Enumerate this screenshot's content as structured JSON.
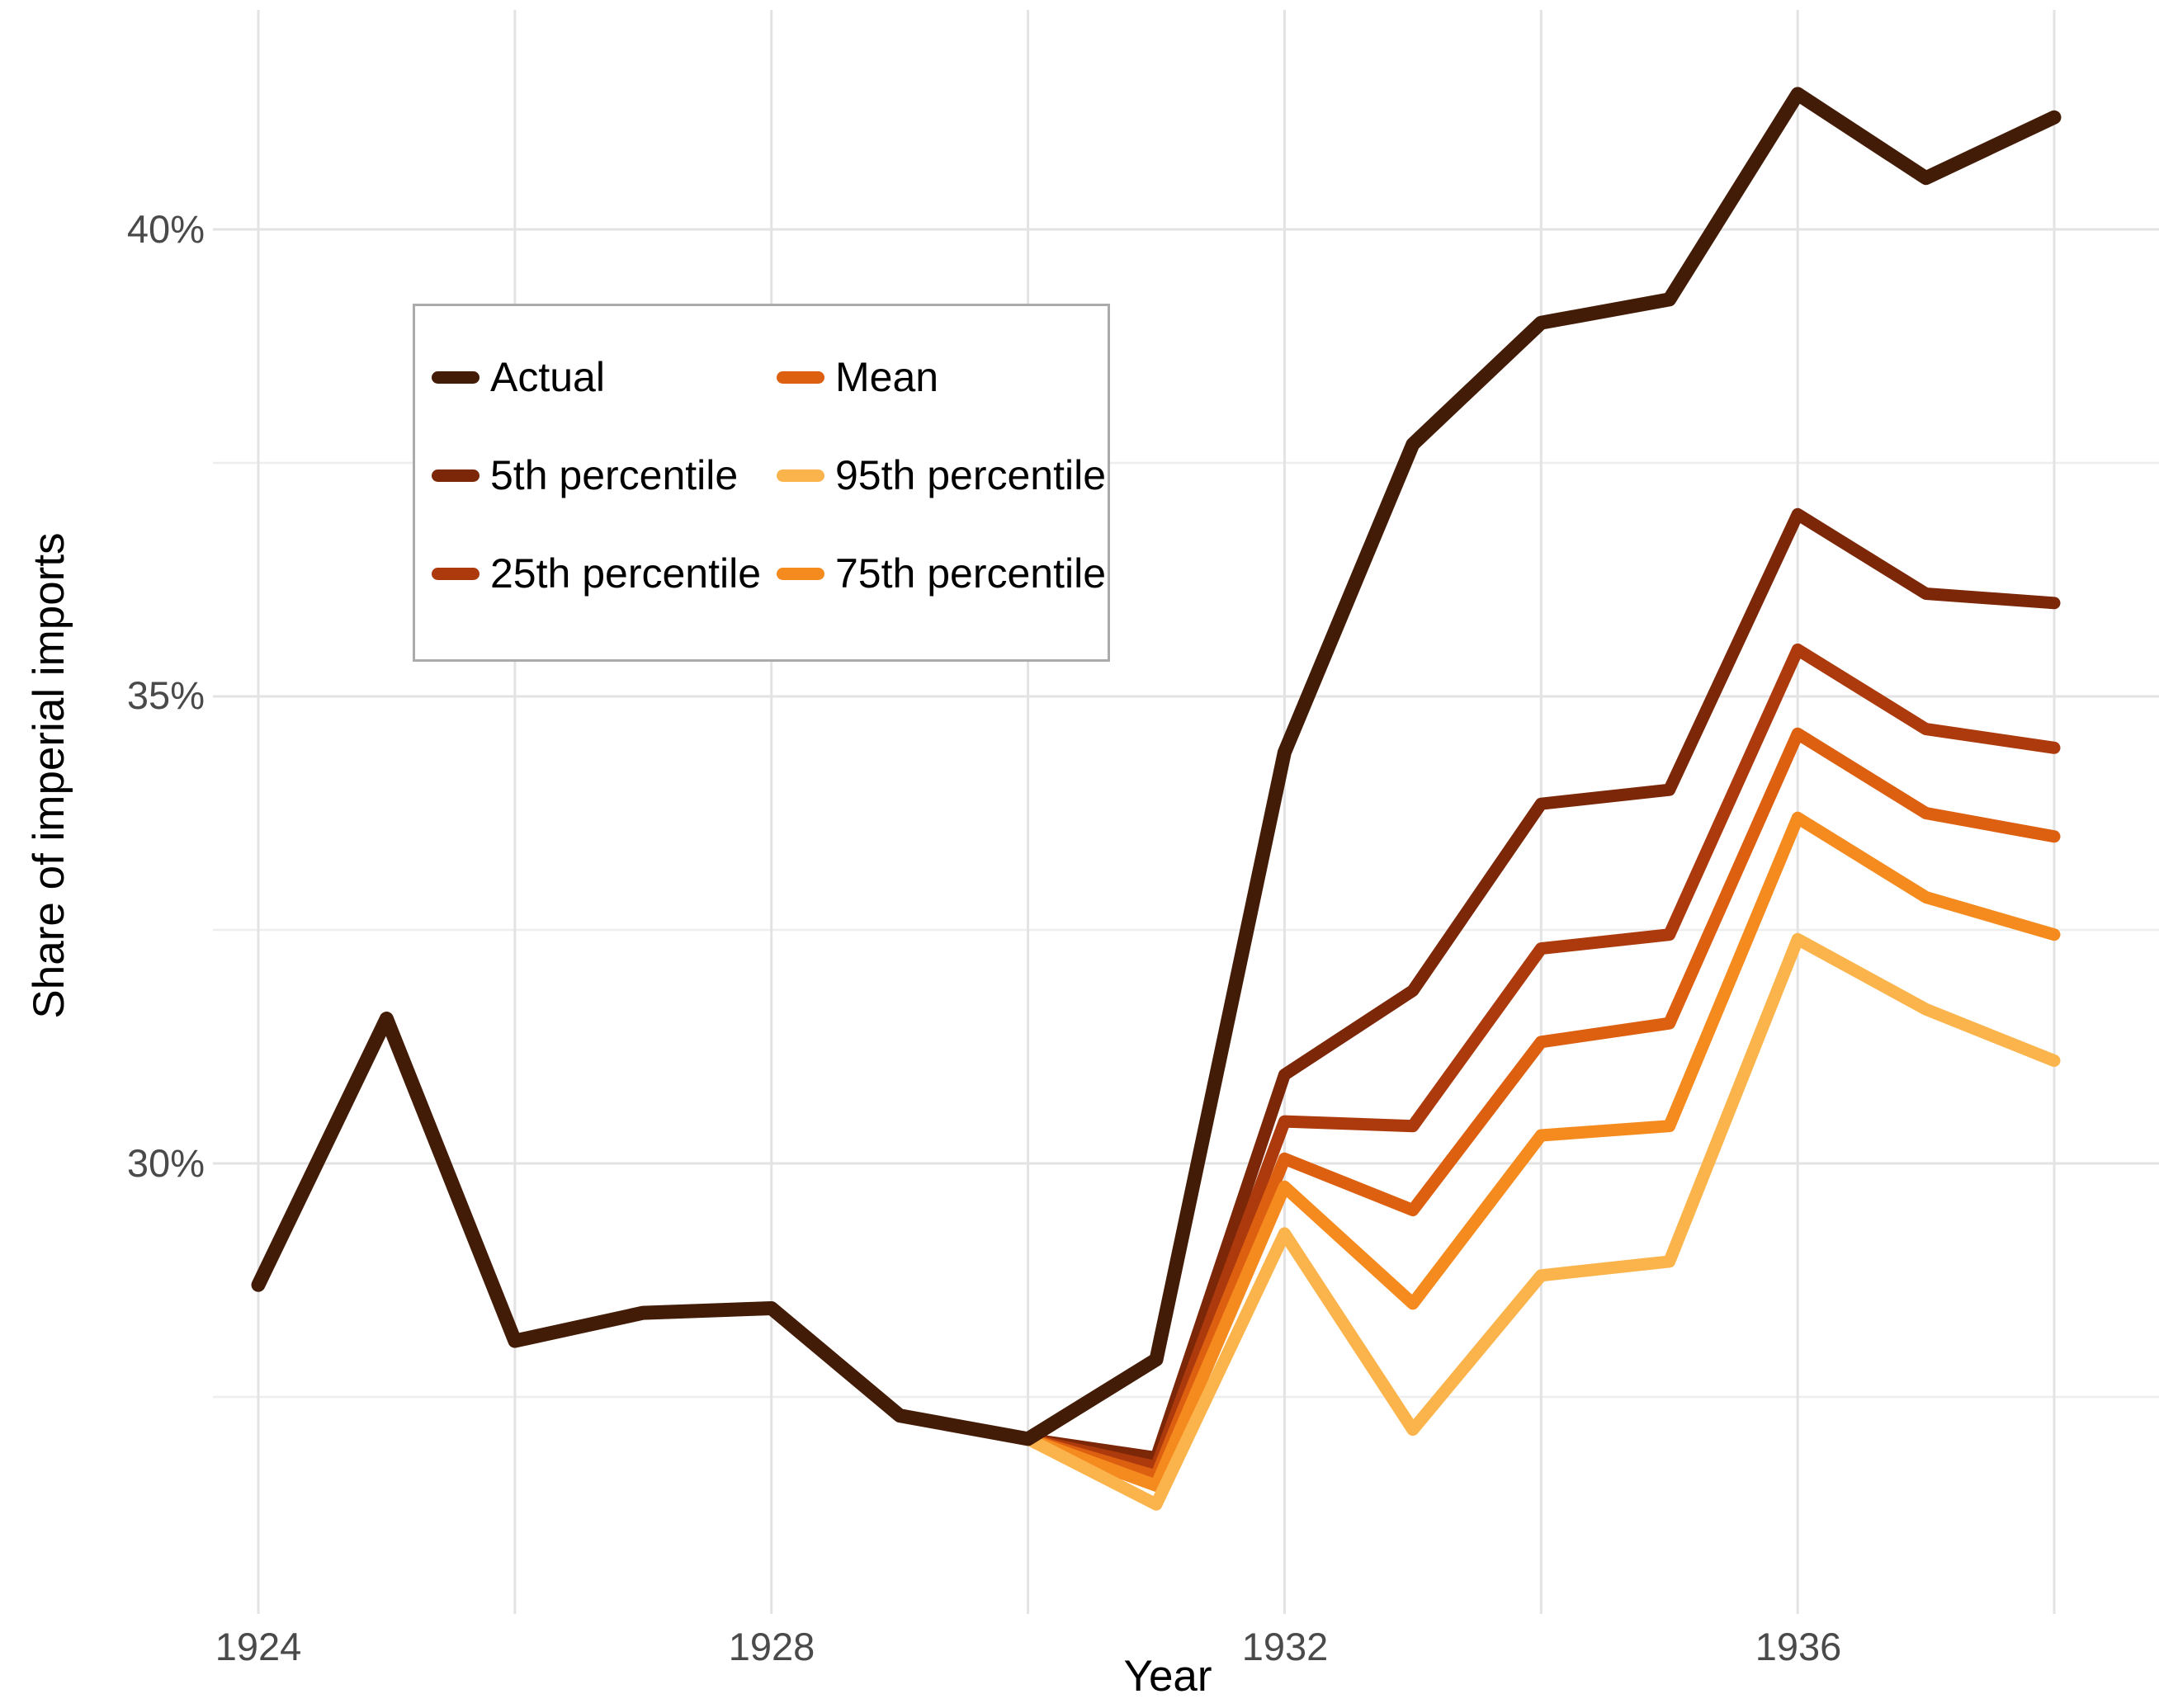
{
  "chart_data": {
    "type": "line",
    "title": "",
    "xlabel": "Year",
    "ylabel": "Share of imperial imports",
    "x": [
      1924,
      1925,
      1926,
      1927,
      1928,
      1929,
      1930,
      1931,
      1932,
      1933,
      1934,
      1935,
      1936,
      1937,
      1938
    ],
    "x_tick_labels": [
      "1924",
      "1928",
      "1932",
      "1936"
    ],
    "x_tick_years": [
      1924,
      1928,
      1932,
      1936
    ],
    "y_tick_labels": [
      "30%",
      "35%",
      "40%"
    ],
    "y_tick_values": [
      30,
      35,
      40
    ],
    "y_minor_gridlines": [
      27.5,
      32.5,
      37.5
    ],
    "x_gridline_years": [
      1924,
      1926,
      1928,
      1930,
      1932,
      1934,
      1936,
      1938
    ],
    "xlim": [
      1923.3,
      1938.8
    ],
    "ylim": [
      26.0,
      42.0
    ],
    "grid": "on",
    "legend_position": "inside-top-left",
    "series": [
      {
        "name": "Actual",
        "color": "#431c07",
        "values": [
          28.7,
          31.55,
          28.1,
          28.4,
          28.45,
          27.3,
          27.05,
          27.9,
          34.4,
          37.7,
          39.0,
          39.25,
          41.45,
          40.55,
          41.2
        ]
      },
      {
        "name": "5th percentile",
        "color": "#7c2708",
        "values": [
          null,
          null,
          null,
          null,
          null,
          null,
          27.05,
          26.85,
          30.95,
          31.85,
          33.85,
          34.0,
          36.95,
          36.1,
          36.0
        ]
      },
      {
        "name": "25th percentile",
        "color": "#ac3a0c",
        "values": [
          null,
          null,
          null,
          null,
          null,
          null,
          27.05,
          26.75,
          30.45,
          30.4,
          32.3,
          32.45,
          35.5,
          34.65,
          34.45
        ]
      },
      {
        "name": "Mean",
        "color": "#dd5f10",
        "values": [
          null,
          null,
          null,
          null,
          null,
          null,
          27.05,
          26.65,
          30.05,
          29.5,
          31.3,
          31.5,
          34.6,
          33.75,
          33.5
        ]
      },
      {
        "name": "75th percentile",
        "color": "#f58b1f",
        "values": [
          null,
          null,
          null,
          null,
          null,
          null,
          27.05,
          26.55,
          29.75,
          28.5,
          30.3,
          30.4,
          33.7,
          32.85,
          32.45
        ]
      },
      {
        "name": "95th percentile",
        "color": "#fbb44c",
        "values": [
          null,
          null,
          null,
          null,
          null,
          null,
          27.05,
          26.35,
          29.25,
          27.15,
          28.8,
          28.95,
          32.4,
          31.65,
          31.1
        ]
      }
    ],
    "legend_columns": [
      [
        0,
        1,
        2
      ],
      [
        3,
        5,
        4
      ]
    ]
  },
  "colors": {
    "background": "#ffffff",
    "grid_major": "#e3e3e3",
    "grid_minor": "#eeeeee",
    "tick_text": "#4a4a4a",
    "axis_title_text": "#000000",
    "legend_border": "#ababab"
  }
}
